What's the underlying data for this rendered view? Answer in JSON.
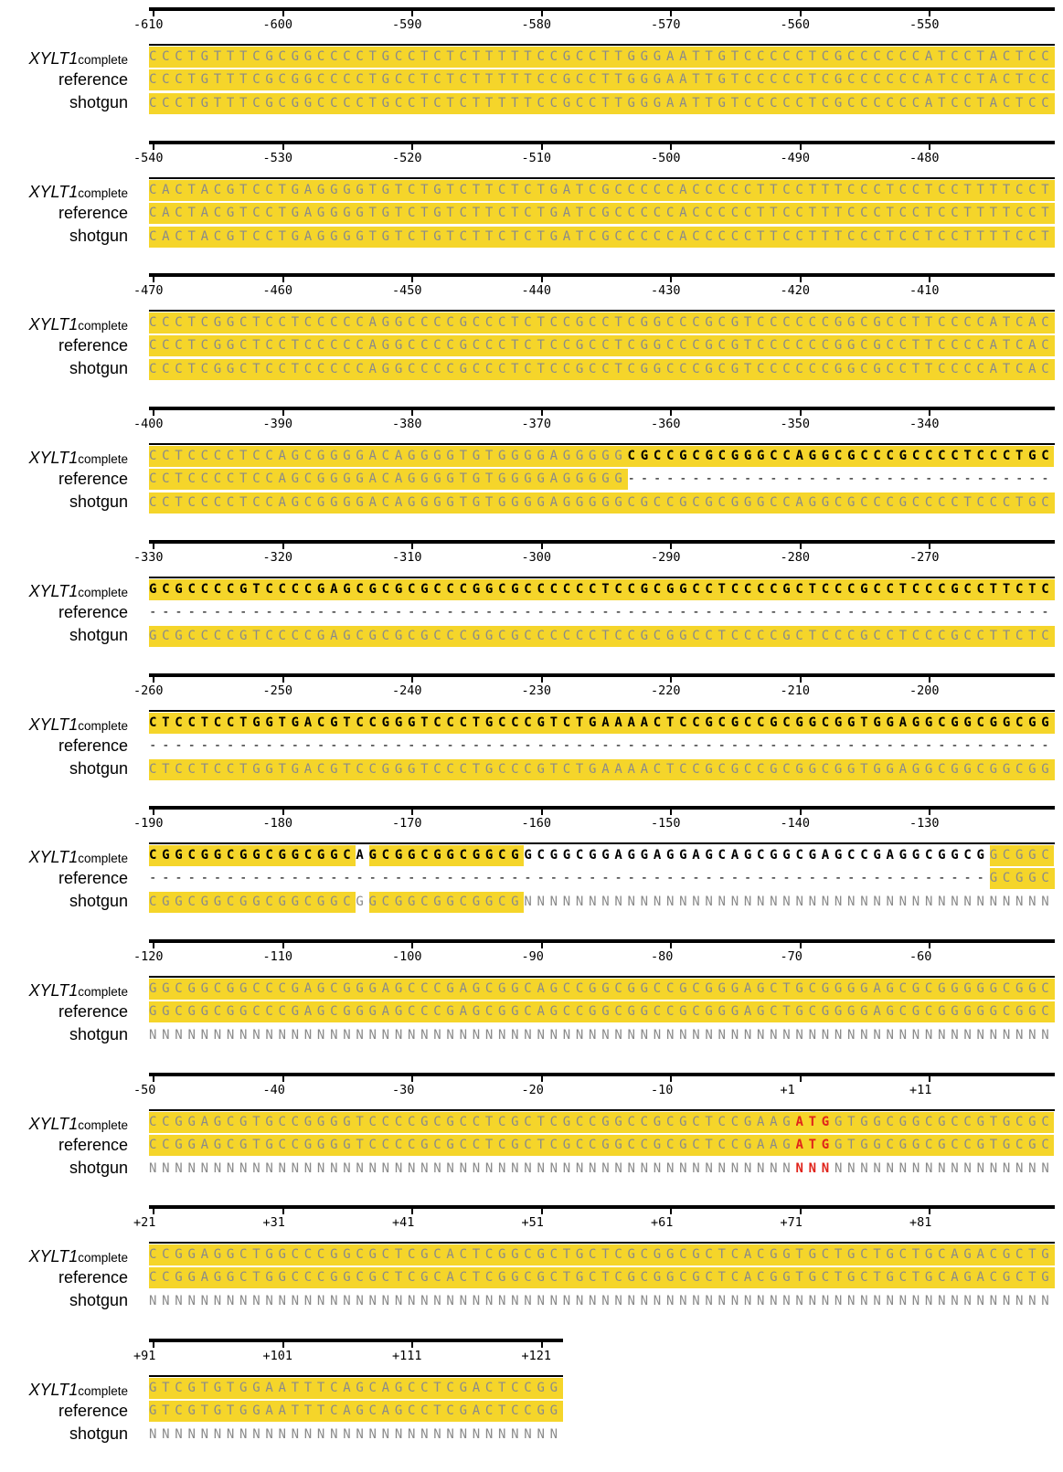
{
  "labels": {
    "gene": "XYLT1",
    "gene_sub": "complete",
    "reference": "reference",
    "shotgun": "shotgun"
  },
  "colors": {
    "highlight": "#f5d52a",
    "plain": "#8a8a8a",
    "inserted": "#000000",
    "start_codon": "#e0241b"
  },
  "blocks": [
    {
      "ticks": [
        "-610",
        "-600",
        "-590",
        "-580",
        "-570",
        "-560",
        "-550"
      ],
      "rows": [
        [
          {
            "t": "CCCTGTTTCGCGGCCCCTGCCTCTCTTTTTCCGCCTTGGGAATTGTCCCCCTCGCCCCCCATCCTACTCC",
            "s": "hl"
          }
        ],
        [
          {
            "t": "CCCTGTTTCGCGGCCCCTGCCTCTCTTTTTCCGCCTTGGGAATTGTCCCCCTCGCCCCCCATCCTACTCC",
            "s": "hl"
          }
        ],
        [
          {
            "t": "CCCTGTTTCGCGGCCCCTGCCTCTCTTTTTCCGCCTTGGGAATTGTCCCCCTCGCCCCCCATCCTACTCC",
            "s": "hl"
          }
        ]
      ]
    },
    {
      "ticks": [
        "-540",
        "-530",
        "-520",
        "-510",
        "-500",
        "-490",
        "-480"
      ],
      "rows": [
        [
          {
            "t": "CACTACGTCCTGAGGGGTGTCTGTCTTCTCTGATCGCCCCCACCCCCTTCCTTTCCCTCCTCCTTTTCCT",
            "s": "hl"
          }
        ],
        [
          {
            "t": "CACTACGTCCTGAGGGGTGTCTGTCTTCTCTGATCGCCCCCACCCCCTTCCTTTCCCTCCTCCTTTTCCT",
            "s": "hl"
          }
        ],
        [
          {
            "t": "CACTACGTCCTGAGGGGTGTCTGTCTTCTCTGATCGCCCCCACCCCCTTCCTTTCCCTCCTCCTTTTCCT",
            "s": "hl"
          }
        ]
      ]
    },
    {
      "ticks": [
        "-470",
        "-460",
        "-450",
        "-440",
        "-430",
        "-420",
        "-410"
      ],
      "rows": [
        [
          {
            "t": "CCCTCGGCTCCTCCCCCAGGCCCCGCCCTCTCCGCCTCGGCCCGCGTCCCCCCGGCGCCTTCCCCATCAC",
            "s": "hl"
          }
        ],
        [
          {
            "t": "CCCTCGGCTCCTCCCCCAGGCCCCGCCCTCTCCGCCTCGGCCCGCGTCCCCCCGGCGCCTTCCCCATCAC",
            "s": "hl"
          }
        ],
        [
          {
            "t": "CCCTCGGCTCCTCCCCCAGGCCCCGCCCTCTCCGCCTCGGCCCGCGTCCCCCCGGCGCCTTCCCCATCAC",
            "s": "hl"
          }
        ]
      ]
    },
    {
      "ticks": [
        "-400",
        "-390",
        "-380",
        "-370",
        "-360",
        "-350",
        "-340"
      ],
      "rows": [
        [
          {
            "t": "CCTCCCCTCCAGCGGGGACAGGGGTGTGGGGAGGGGG",
            "s": "hl"
          },
          {
            "t": "CGCCGCGCGGGCCAGGCGCCCGCCCCTCCCTGC",
            "s": "hlb"
          }
        ],
        [
          {
            "t": "CCTCCCCTCCAGCGGGGACAGGGGTGTGGGGAGGGGG",
            "s": "hl"
          },
          {
            "t": "---------------------------------",
            "s": "dash"
          }
        ],
        [
          {
            "t": "CCTCCCCTCCAGCGGGGACAGGGGTGTGGGGAGGGGGCGCCGCGCGGGCCAGGCGCCCGCCCCTCCCTGC",
            "s": "hl"
          }
        ]
      ]
    },
    {
      "ticks": [
        "-330",
        "-320",
        "-310",
        "-300",
        "-290",
        "-280",
        "-270"
      ],
      "rows": [
        [
          {
            "t": "GCGCCCCGTCCCCGAGCGCGCGCCCGGCGCCCCCCTCCGCGGCCTCCCCGCTCCCGCCTCCCGCCTTCTC",
            "s": "hlb"
          }
        ],
        [
          {
            "t": "----------------------------------------------------------------------",
            "s": "dash"
          }
        ],
        [
          {
            "t": "GCGCCCCGTCCCCGAGCGCGCGCCCGGCGCCCCCCTCCGCGGCCTCCCCGCTCCCGCCTCCCGCCTTCTC",
            "s": "hl"
          }
        ]
      ]
    },
    {
      "ticks": [
        "-260",
        "-250",
        "-240",
        "-230",
        "-220",
        "-210",
        "-200"
      ],
      "rows": [
        [
          {
            "t": "CTCCTCCTGGTGACGTCCGGGTCCCTGCCCGTCTGAAAACTCCGCGCCGCGGCGGTGGAGGCGGCGGCGG",
            "s": "hlb"
          }
        ],
        [
          {
            "t": "----------------------------------------------------------------------",
            "s": "dash"
          }
        ],
        [
          {
            "t": "CTCCTCCTGGTGACGTCCGGGTCCCTGCCCGTCTGAAAACTCCGCGCCGCGGCGGTGGAGGCGGCGGCGG",
            "s": "hl"
          }
        ]
      ]
    },
    {
      "ticks": [
        "-190",
        "-180",
        "-170",
        "-160",
        "-150",
        "-140",
        "-130"
      ],
      "rows": [
        [
          {
            "t": "CGGCGGCGGCGGCGGC",
            "s": "hlb"
          },
          {
            "t": "A",
            "s": "bold"
          },
          {
            "t": "GCGGCGGCGGCG",
            "s": "hlb"
          },
          {
            "t": "GCGGCGGAGGAGGAGCAGCGGCGAGCCGAGGCGGCG",
            "s": "bold"
          },
          {
            "t": "GCGGC",
            "s": "hl"
          }
        ],
        [
          {
            "t": "-----------------------------------------------------------------",
            "s": "dash"
          },
          {
            "t": "GCGGC",
            "s": "hl"
          }
        ],
        [
          {
            "t": "CGGCGGCGGCGGCGGC",
            "s": "hl"
          },
          {
            "t": "G",
            "s": "plain"
          },
          {
            "t": "GCGGCGGCGGCG",
            "s": "hl"
          },
          {
            "t": "NNNNNNNNNNNNNNNNNNNNNNNNNNNNNNNNNNNNNNNNN",
            "s": "plain"
          }
        ]
      ]
    },
    {
      "ticks": [
        "-120",
        "-110",
        "-100",
        "-90",
        "-80",
        "-70",
        "-60"
      ],
      "rows": [
        [
          {
            "t": "GGCGGCGGCCCGAGCGGGAGCCCGAGCGGCAGCCGGCGGCCGCGGGAGCTGCGGGGAGCGCGGGGGCGGC",
            "s": "hl"
          }
        ],
        [
          {
            "t": "GGCGGCGGCCCGAGCGGGAGCCCGAGCGGCAGCCGGCGGCCGCGGGAGCTGCGGGGAGCGCGGGGGCGGC",
            "s": "hl"
          }
        ],
        [
          {
            "t": "NNNNNNNNNNNNNNNNNNNNNNNNNNNNNNNNNNNNNNNNNNNNNNNNNNNNNNNNNNNNNNNNNNNNNN",
            "s": "plain"
          }
        ]
      ]
    },
    {
      "ticks": [
        "-50",
        "-40",
        "-30",
        "-20",
        "-10",
        "+1",
        "+11"
      ],
      "rows": [
        [
          {
            "t": "CCGGAGCGTGCCGGGGTCCCCGCGCCTCGCTCGCCGGCCGCGCTCCGAAG",
            "s": "hl"
          },
          {
            "t": "ATG",
            "s": "hlred"
          },
          {
            "t": "GTGGCGGCGCCGTGCGC",
            "s": "hl"
          }
        ],
        [
          {
            "t": "CCGGAGCGTGCCGGGGTCCCCGCGCCTCGCTCGCCGGCCGCGCTCCGAAG",
            "s": "hl"
          },
          {
            "t": "ATG",
            "s": "hlred"
          },
          {
            "t": "GTGGCGGCGCCGTGCGC",
            "s": "hl"
          }
        ],
        [
          {
            "t": "NNNNNNNNNNNNNNNNNNNNNNNNNNNNNNNNNNNNNNNNNNNNNNNNNN",
            "s": "plain"
          },
          {
            "t": "NNN",
            "s": "red"
          },
          {
            "t": "NNNNNNNNNNNNNNNNN",
            "s": "plain"
          }
        ]
      ]
    },
    {
      "ticks": [
        "+21",
        "+31",
        "+41",
        "+51",
        "+61",
        "+71",
        "+81"
      ],
      "rows": [
        [
          {
            "t": "CCGGAGGCTGGCCCGGCGCTCGCACTCGGCGCTGCTCGCGGCGCTCACGGTGCTGCTGCTGCAGACGCTG",
            "s": "hl"
          }
        ],
        [
          {
            "t": "CCGGAGGCTGGCCCGGCGCTCGCACTCGGCGCTGCTCGCGGCGCTCACGGTGCTGCTGCTGCAGACGCTG",
            "s": "hl"
          }
        ],
        [
          {
            "t": "NNNNNNNNNNNNNNNNNNNNNNNNNNNNNNNNNNNNNNNNNNNNNNNNNNNNNNNNNNNNNNNNNNNNNN",
            "s": "plain"
          }
        ]
      ]
    },
    {
      "ticks": [
        "+91",
        "+101",
        "+111",
        "+121"
      ],
      "rows": [
        [
          {
            "t": "GTCGTGTGGAATTTCAGCAGCCTCGACTCCGG",
            "s": "hl"
          }
        ],
        [
          {
            "t": "GTCGTGTGGAATTTCAGCAGCCTCGACTCCGG",
            "s": "hl"
          }
        ],
        [
          {
            "t": "NNNNNNNNNNNNNNNNNNNNNNNNNNNNNNNN",
            "s": "plain"
          }
        ]
      ]
    }
  ]
}
